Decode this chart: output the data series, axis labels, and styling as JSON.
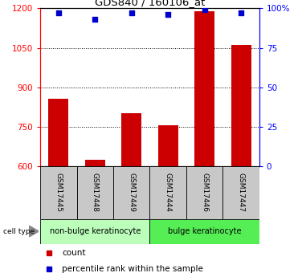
{
  "title": "GDS840 / 160106_at",
  "samples": [
    "GSM17445",
    "GSM17448",
    "GSM17449",
    "GSM17444",
    "GSM17446",
    "GSM17447"
  ],
  "counts": [
    855,
    625,
    800,
    755,
    1190,
    1060
  ],
  "percentiles": [
    97,
    93,
    97,
    96,
    99,
    97
  ],
  "ylim_left": [
    600,
    1200
  ],
  "ylim_right": [
    0,
    100
  ],
  "yticks_left": [
    600,
    750,
    900,
    1050,
    1200
  ],
  "yticks_right": [
    0,
    25,
    50,
    75,
    100
  ],
  "yticklabels_right": [
    "0",
    "25",
    "50",
    "75",
    "100%"
  ],
  "bar_color": "#cc0000",
  "dot_color": "#0000cc",
  "cell_types": [
    {
      "label": "non-bulge keratinocyte",
      "n_samples": 3,
      "color": "#bbffbb"
    },
    {
      "label": "bulge keratinocyte",
      "n_samples": 3,
      "color": "#55ee55"
    }
  ],
  "legend_items": [
    {
      "label": "count",
      "color": "#cc0000"
    },
    {
      "label": "percentile rank within the sample",
      "color": "#0000cc"
    }
  ],
  "sample_box_color": "#c8c8c8",
  "bar_width": 0.55
}
